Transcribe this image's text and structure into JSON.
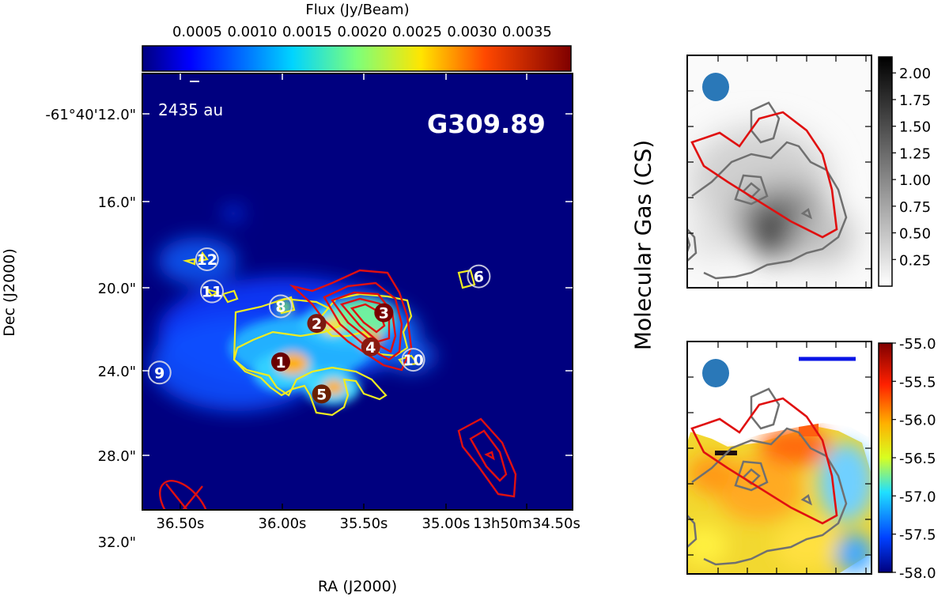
{
  "chart_data": [
    {
      "type": "heatmap",
      "panel": "main",
      "title": "G309.89",
      "xlabel": "RA (J2000)",
      "ylabel": "Dec (J2000)",
      "colorbar": {
        "label": "Flux (Jy/Beam)",
        "ticks": [
          "0.0005",
          "0.0010",
          "0.0015",
          "0.0020",
          "0.0025",
          "0.0030",
          "0.0035"
        ],
        "range": [
          0.0,
          0.0039
        ],
        "colormap": "jet",
        "placement": "top"
      },
      "x_ticks": [
        "36.50s",
        "36.00s",
        "35.50s",
        "35.00s",
        "13h50m34.50s"
      ],
      "y_ticks": [
        "-61°40'12.0\"",
        "16.0\"",
        "20.0\"",
        "24.0\"",
        "28.0\"",
        "32.0\""
      ],
      "scalebar_label": "2435 au",
      "sources": [
        {
          "id": "1",
          "ra_s": 36.01,
          "dec_off": 23.6
        },
        {
          "id": "2",
          "ra_s": 35.79,
          "dec_off": 21.8
        },
        {
          "id": "3",
          "ra_s": 35.38,
          "dec_off": 21.3
        },
        {
          "id": "4",
          "ra_s": 35.46,
          "dec_off": 22.9
        },
        {
          "id": "5",
          "ra_s": 35.76,
          "dec_off": 25.1
        },
        {
          "id": "6",
          "ra_s": 34.8,
          "dec_off": 19.6
        },
        {
          "id": "8",
          "ra_s": 36.01,
          "dec_off": 21.0
        },
        {
          "id": "9",
          "ra_s": 36.75,
          "dec_off": 24.1
        },
        {
          "id": "10",
          "ra_s": 35.2,
          "dec_off": 23.5
        },
        {
          "id": "11",
          "ra_s": 36.43,
          "dec_off": 20.3
        },
        {
          "id": "12",
          "ra_s": 36.46,
          "dec_off": 18.8
        }
      ]
    },
    {
      "type": "heatmap",
      "panel": "top-right",
      "ylabel": "Molecular Gas (CS)",
      "colorbar": {
        "ticks": [
          "2.00",
          "1.75",
          "1.50",
          "1.25",
          "1.00",
          "0.75",
          "0.50",
          "0.25"
        ],
        "range": [
          0.0,
          2.15
        ],
        "colormap": "gray_r"
      }
    },
    {
      "type": "heatmap",
      "panel": "bottom-right",
      "colorbar": {
        "ticks": [
          "-55.0",
          "-55.5",
          "-56.0",
          "-56.5",
          "-57.0",
          "-57.5",
          "-58.0"
        ],
        "range": [
          -58.0,
          -55.0
        ],
        "colormap": "jet"
      }
    }
  ],
  "colors": {
    "contour_red": "#e01010",
    "contour_yellow": "#f0ec20",
    "contour_gray": "#707070",
    "beam_blue": "#2a78b8",
    "scalebar_blue": "#0a14e6",
    "background_dark_blue": "#00007f"
  }
}
